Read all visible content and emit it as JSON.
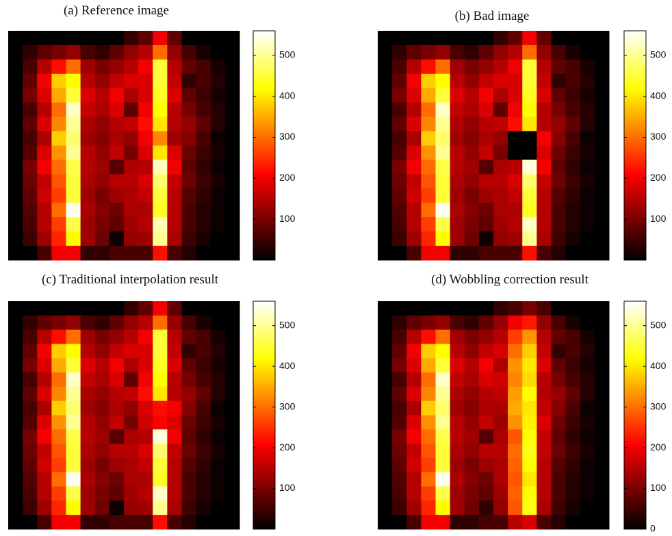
{
  "chart_data": [
    {
      "type": "heatmap",
      "title": "(a) Reference image",
      "colormap": "hot",
      "zlim": [
        0,
        560
      ],
      "zticks": [
        100,
        200,
        300,
        400,
        500
      ],
      "z": [
        [
          0,
          0,
          0,
          0,
          0,
          0,
          0,
          0,
          40,
          80,
          200,
          80,
          0,
          0,
          0,
          0
        ],
        [
          0,
          40,
          80,
          100,
          120,
          60,
          40,
          80,
          120,
          150,
          300,
          120,
          60,
          20,
          0,
          0
        ],
        [
          0,
          60,
          150,
          220,
          300,
          130,
          100,
          120,
          150,
          200,
          450,
          150,
          80,
          60,
          20,
          0
        ],
        [
          0,
          80,
          200,
          380,
          420,
          150,
          120,
          160,
          180,
          180,
          450,
          160,
          40,
          60,
          30,
          0
        ],
        [
          0,
          100,
          180,
          350,
          450,
          180,
          150,
          200,
          140,
          180,
          440,
          180,
          80,
          50,
          20,
          0
        ],
        [
          0,
          60,
          150,
          300,
          530,
          160,
          140,
          180,
          80,
          200,
          420,
          150,
          100,
          60,
          30,
          0
        ],
        [
          0,
          80,
          180,
          320,
          500,
          140,
          120,
          150,
          160,
          220,
          400,
          150,
          120,
          80,
          30,
          0
        ],
        [
          0,
          60,
          140,
          380,
          480,
          130,
          110,
          140,
          120,
          200,
          320,
          130,
          110,
          60,
          10,
          0
        ],
        [
          0,
          70,
          180,
          330,
          500,
          150,
          120,
          160,
          100,
          180,
          400,
          180,
          90,
          50,
          20,
          0
        ],
        [
          0,
          100,
          200,
          300,
          460,
          150,
          130,
          70,
          140,
          150,
          520,
          200,
          80,
          40,
          10,
          0
        ],
        [
          0,
          90,
          160,
          280,
          450,
          140,
          120,
          150,
          150,
          180,
          480,
          160,
          90,
          50,
          20,
          0
        ],
        [
          0,
          80,
          170,
          260,
          450,
          130,
          100,
          130,
          140,
          160,
          450,
          150,
          70,
          40,
          10,
          0
        ],
        [
          0,
          70,
          150,
          300,
          550,
          140,
          110,
          90,
          140,
          140,
          440,
          150,
          60,
          30,
          10,
          0
        ],
        [
          0,
          60,
          150,
          260,
          460,
          130,
          100,
          80,
          130,
          150,
          520,
          150,
          60,
          30,
          10,
          0
        ],
        [
          0,
          50,
          130,
          240,
          420,
          130,
          90,
          10,
          120,
          130,
          500,
          140,
          50,
          20,
          0,
          0
        ],
        [
          0,
          0,
          60,
          200,
          200,
          40,
          40,
          60,
          60,
          60,
          220,
          60,
          30,
          0,
          0,
          0
        ]
      ]
    },
    {
      "type": "heatmap",
      "title": "(b) Bad image",
      "colormap": "hot",
      "zlim": [
        0,
        560
      ],
      "zticks": [
        100,
        200,
        300,
        400,
        500
      ],
      "z": [
        [
          0,
          0,
          0,
          0,
          0,
          0,
          0,
          0,
          40,
          80,
          200,
          80,
          0,
          0,
          0,
          0
        ],
        [
          0,
          40,
          80,
          100,
          120,
          60,
          40,
          80,
          120,
          150,
          300,
          120,
          60,
          20,
          0,
          0
        ],
        [
          0,
          60,
          150,
          220,
          300,
          130,
          100,
          120,
          150,
          200,
          450,
          150,
          80,
          60,
          20,
          0
        ],
        [
          0,
          80,
          200,
          380,
          420,
          150,
          120,
          160,
          180,
          180,
          450,
          160,
          40,
          60,
          30,
          0
        ],
        [
          0,
          100,
          180,
          350,
          450,
          180,
          150,
          200,
          140,
          180,
          440,
          180,
          80,
          50,
          20,
          0
        ],
        [
          0,
          60,
          150,
          300,
          530,
          160,
          140,
          180,
          80,
          200,
          420,
          150,
          100,
          60,
          30,
          0
        ],
        [
          0,
          80,
          180,
          320,
          500,
          140,
          120,
          150,
          160,
          220,
          400,
          150,
          120,
          80,
          30,
          0
        ],
        [
          0,
          60,
          140,
          380,
          480,
          130,
          110,
          140,
          120,
          0,
          0,
          200,
          110,
          60,
          10,
          0
        ],
        [
          0,
          70,
          180,
          330,
          500,
          150,
          120,
          160,
          100,
          0,
          0,
          180,
          90,
          50,
          20,
          0
        ],
        [
          0,
          100,
          200,
          300,
          460,
          150,
          130,
          70,
          140,
          150,
          540,
          200,
          80,
          40,
          10,
          0
        ],
        [
          0,
          90,
          160,
          280,
          450,
          140,
          120,
          150,
          150,
          180,
          480,
          160,
          90,
          50,
          20,
          0
        ],
        [
          0,
          80,
          170,
          260,
          450,
          130,
          100,
          130,
          140,
          160,
          450,
          150,
          70,
          40,
          10,
          0
        ],
        [
          0,
          70,
          150,
          300,
          550,
          140,
          110,
          90,
          140,
          140,
          440,
          150,
          60,
          30,
          10,
          0
        ],
        [
          0,
          60,
          150,
          260,
          460,
          130,
          100,
          80,
          130,
          150,
          530,
          150,
          60,
          30,
          10,
          0
        ],
        [
          0,
          50,
          130,
          240,
          420,
          130,
          90,
          10,
          120,
          130,
          500,
          140,
          50,
          20,
          0,
          0
        ],
        [
          0,
          0,
          60,
          200,
          200,
          40,
          40,
          60,
          60,
          60,
          220,
          60,
          30,
          0,
          0,
          0
        ]
      ]
    },
    {
      "type": "heatmap",
      "title": "(c) Traditional interpolation result",
      "colormap": "hot",
      "zlim": [
        0,
        560
      ],
      "zticks": [
        100,
        200,
        300,
        400,
        500
      ],
      "z": [
        [
          0,
          0,
          0,
          0,
          0,
          0,
          0,
          0,
          40,
          80,
          200,
          80,
          0,
          0,
          0,
          0
        ],
        [
          0,
          40,
          80,
          100,
          120,
          60,
          40,
          80,
          120,
          150,
          300,
          120,
          60,
          20,
          0,
          0
        ],
        [
          0,
          60,
          150,
          220,
          300,
          130,
          100,
          120,
          150,
          200,
          450,
          150,
          80,
          60,
          20,
          0
        ],
        [
          0,
          80,
          200,
          380,
          420,
          150,
          120,
          160,
          180,
          180,
          450,
          160,
          40,
          60,
          30,
          0
        ],
        [
          0,
          100,
          180,
          350,
          450,
          180,
          150,
          200,
          140,
          180,
          440,
          180,
          80,
          50,
          20,
          0
        ],
        [
          0,
          60,
          150,
          300,
          530,
          160,
          140,
          180,
          80,
          200,
          420,
          150,
          100,
          60,
          30,
          0
        ],
        [
          0,
          80,
          180,
          320,
          500,
          140,
          120,
          150,
          160,
          220,
          400,
          150,
          120,
          80,
          30,
          0
        ],
        [
          0,
          60,
          140,
          380,
          480,
          130,
          110,
          140,
          120,
          180,
          220,
          200,
          110,
          60,
          10,
          0
        ],
        [
          0,
          70,
          180,
          330,
          500,
          150,
          120,
          160,
          100,
          170,
          210,
          180,
          90,
          50,
          20,
          0
        ],
        [
          0,
          100,
          200,
          300,
          460,
          150,
          130,
          70,
          140,
          150,
          540,
          200,
          80,
          40,
          10,
          0
        ],
        [
          0,
          90,
          160,
          280,
          450,
          140,
          120,
          150,
          150,
          180,
          480,
          160,
          90,
          50,
          20,
          0
        ],
        [
          0,
          80,
          170,
          260,
          450,
          130,
          100,
          130,
          140,
          160,
          450,
          150,
          70,
          40,
          10,
          0
        ],
        [
          0,
          70,
          150,
          300,
          550,
          140,
          110,
          90,
          140,
          140,
          440,
          150,
          60,
          30,
          10,
          0
        ],
        [
          0,
          60,
          150,
          260,
          460,
          130,
          100,
          80,
          130,
          150,
          530,
          150,
          60,
          30,
          10,
          0
        ],
        [
          0,
          50,
          130,
          240,
          420,
          130,
          90,
          10,
          120,
          130,
          500,
          140,
          50,
          20,
          0,
          0
        ],
        [
          0,
          0,
          60,
          200,
          200,
          40,
          40,
          60,
          60,
          60,
          220,
          60,
          30,
          0,
          0,
          0
        ]
      ]
    },
    {
      "type": "heatmap",
      "title": "(d) Wobbling correction result",
      "colormap": "hot",
      "zlim": [
        0,
        560
      ],
      "zticks": [
        0,
        100,
        200,
        300,
        400,
        500
      ],
      "z": [
        [
          0,
          0,
          0,
          0,
          0,
          0,
          0,
          0,
          40,
          60,
          100,
          60,
          0,
          0,
          0,
          0
        ],
        [
          0,
          40,
          80,
          100,
          120,
          60,
          40,
          80,
          120,
          200,
          230,
          120,
          60,
          20,
          0,
          0
        ],
        [
          0,
          60,
          150,
          220,
          300,
          130,
          100,
          120,
          150,
          260,
          330,
          150,
          80,
          60,
          20,
          0
        ],
        [
          0,
          80,
          200,
          380,
          420,
          150,
          120,
          160,
          180,
          300,
          380,
          160,
          40,
          60,
          30,
          0
        ],
        [
          0,
          100,
          180,
          350,
          450,
          180,
          150,
          200,
          140,
          330,
          400,
          180,
          80,
          50,
          20,
          0
        ],
        [
          0,
          60,
          150,
          300,
          530,
          160,
          140,
          180,
          170,
          320,
          390,
          150,
          100,
          60,
          30,
          0
        ],
        [
          0,
          80,
          180,
          320,
          500,
          140,
          120,
          150,
          160,
          340,
          420,
          150,
          120,
          80,
          30,
          0
        ],
        [
          0,
          60,
          140,
          380,
          480,
          130,
          110,
          140,
          140,
          350,
          400,
          160,
          110,
          60,
          10,
          0
        ],
        [
          0,
          70,
          180,
          330,
          500,
          150,
          120,
          160,
          130,
          330,
          410,
          180,
          90,
          50,
          20,
          0
        ],
        [
          0,
          100,
          200,
          300,
          460,
          150,
          130,
          70,
          140,
          280,
          420,
          160,
          80,
          40,
          10,
          0
        ],
        [
          0,
          90,
          160,
          280,
          450,
          140,
          120,
          150,
          150,
          300,
          430,
          160,
          90,
          50,
          20,
          0
        ],
        [
          0,
          80,
          170,
          260,
          450,
          130,
          100,
          130,
          140,
          290,
          420,
          150,
          70,
          40,
          10,
          0
        ],
        [
          0,
          70,
          150,
          300,
          550,
          140,
          110,
          90,
          140,
          280,
          400,
          150,
          60,
          30,
          10,
          0
        ],
        [
          0,
          60,
          150,
          260,
          460,
          130,
          100,
          80,
          130,
          290,
          420,
          150,
          60,
          30,
          10,
          0
        ],
        [
          0,
          50,
          130,
          240,
          420,
          130,
          90,
          40,
          120,
          280,
          430,
          140,
          50,
          20,
          0,
          0
        ],
        [
          0,
          0,
          60,
          200,
          200,
          40,
          40,
          60,
          60,
          150,
          180,
          60,
          30,
          0,
          0,
          0
        ]
      ]
    }
  ]
}
